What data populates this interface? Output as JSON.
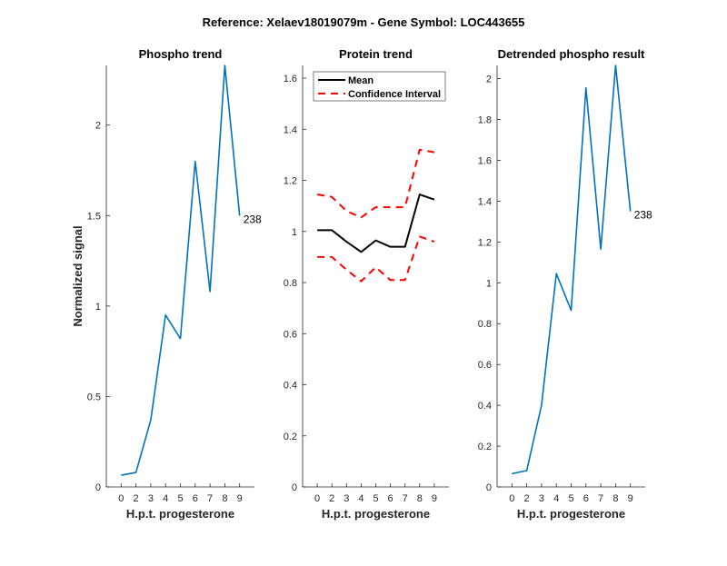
{
  "figure_title": "Reference:  Xelaev18019079m - Gene Symbol:  LOC443655",
  "colors": {
    "series": "#0072BD",
    "mean": "#000000",
    "ci": "#FF0000",
    "axis": "#262626"
  },
  "chart_data": [
    {
      "type": "line",
      "title": "Phospho trend",
      "xlabel": "H.p.t. progesterone",
      "ylabel": "Normalized signal",
      "categories": [
        "0",
        "2",
        "3",
        "4",
        "5",
        "6",
        "7",
        "8",
        "9"
      ],
      "ylim": [
        0,
        2.33
      ],
      "yticks": [
        0,
        0.5,
        1,
        1.5,
        2
      ],
      "ytick_labels": [
        "0",
        "0.5",
        "1",
        "1.5",
        "2"
      ],
      "series": [
        {
          "values": [
            0.065,
            0.08,
            0.37,
            0.95,
            0.82,
            1.8,
            1.08,
            2.33,
            1.5
          ]
        }
      ],
      "end_label": "238",
      "grid": false
    },
    {
      "type": "line",
      "title": "Protein trend",
      "xlabel": "H.p.t. progesterone",
      "ylabel": "",
      "categories": [
        "0",
        "2",
        "3",
        "4",
        "5",
        "6",
        "7",
        "8",
        "9"
      ],
      "ylim": [
        0,
        1.65
      ],
      "yticks": [
        0,
        0.2,
        0.4,
        0.6,
        0.8,
        1,
        1.2,
        1.4,
        1.6
      ],
      "ytick_labels": [
        "0",
        "0.2",
        "0.4",
        "0.6",
        "0.8",
        "1",
        "1.2",
        "1.4",
        "1.6"
      ],
      "series": [
        {
          "name": "Mean",
          "values": [
            1.005,
            1.005,
            0.96,
            0.92,
            0.965,
            0.94,
            0.94,
            1.145,
            1.125
          ]
        },
        {
          "name": "Confidence Interval",
          "values": [
            1.145,
            1.135,
            1.08,
            1.055,
            1.095,
            1.095,
            1.095,
            1.32,
            1.31
          ]
        },
        {
          "values": [
            0.9,
            0.9,
            0.85,
            0.805,
            0.86,
            0.81,
            0.81,
            0.98,
            0.96
          ]
        }
      ],
      "legend": "top-left",
      "grid": false
    },
    {
      "type": "line",
      "title": "Detrended phospho result",
      "xlabel": "H.p.t. progesterone",
      "ylabel": "",
      "categories": [
        "0",
        "2",
        "3",
        "4",
        "5",
        "6",
        "7",
        "8",
        "9"
      ],
      "ylim": [
        0,
        2.065
      ],
      "yticks": [
        0,
        0.2,
        0.4,
        0.6,
        0.8,
        1,
        1.2,
        1.4,
        1.6,
        1.8,
        2
      ],
      "ytick_labels": [
        "0",
        "0.2",
        "0.4",
        "0.6",
        "0.8",
        "1",
        "1.2",
        "1.4",
        "1.6",
        "1.8",
        "2"
      ],
      "series": [
        {
          "values": [
            0.065,
            0.08,
            0.4,
            1.045,
            0.865,
            1.955,
            1.165,
            2.065,
            1.35
          ]
        }
      ],
      "end_label": "238",
      "grid": false
    }
  ]
}
